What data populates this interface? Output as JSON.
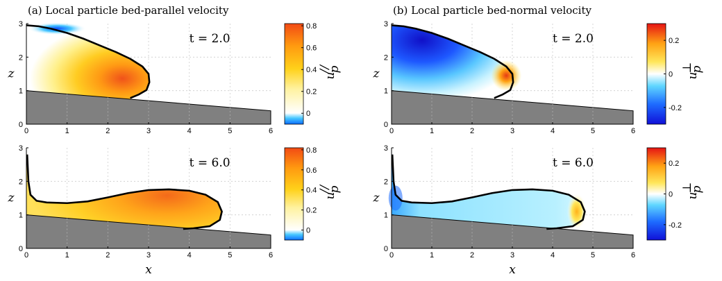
{
  "chart_data": [
    {
      "type": "heatmap",
      "panel": "left-top",
      "title": "(a) Local particle bed-parallel velocity",
      "time_label": "t = 2.0",
      "xlabel": "",
      "ylabel": "z",
      "xlim": [
        0,
        6
      ],
      "ylim": [
        0,
        3
      ],
      "xticks": [
        "0",
        "1",
        "2",
        "3",
        "4",
        "5",
        "6"
      ],
      "yticks": [
        "0",
        "1",
        "2",
        "3"
      ],
      "bed_line": {
        "x": [
          0,
          6
        ],
        "z": [
          1.0,
          0.4
        ]
      },
      "front_outline": {
        "x": [
          0.0,
          0.3,
          0.6,
          1.0,
          1.4,
          1.8,
          2.2,
          2.55,
          2.85,
          3.0,
          3.02,
          2.95,
          2.75,
          2.55
        ],
        "z": [
          2.95,
          2.92,
          2.85,
          2.72,
          2.55,
          2.35,
          2.15,
          1.95,
          1.72,
          1.5,
          1.25,
          1.02,
          0.88,
          0.78
        ]
      },
      "colorbar": {
        "label": "u_p^//",
        "ticks": [
          -0.0,
          0.2,
          0.4,
          0.6,
          0.8
        ],
        "ticklabels": [
          "0",
          "0.2",
          "0.4",
          "0.6",
          "0.8"
        ],
        "range": [
          -0.1,
          0.82
        ],
        "colormap": "white-yellow-red, blue below 0"
      },
      "grid": true
    },
    {
      "type": "heatmap",
      "panel": "right-top",
      "title": "(b) Local particle bed-normal velocity",
      "time_label": "t = 2.0",
      "xlabel": "",
      "ylabel": "z",
      "xlim": [
        0,
        6
      ],
      "ylim": [
        0,
        3
      ],
      "xticks": [
        "0",
        "1",
        "2",
        "3",
        "4",
        "5",
        "6"
      ],
      "yticks": [
        "0",
        "1",
        "2",
        "3"
      ],
      "bed_line": {
        "x": [
          0,
          6
        ],
        "z": [
          1.0,
          0.4
        ]
      },
      "front_outline": {
        "x": [
          0.0,
          0.3,
          0.6,
          1.0,
          1.4,
          1.8,
          2.2,
          2.55,
          2.85,
          3.0,
          3.02,
          2.95,
          2.75,
          2.55
        ],
        "z": [
          2.95,
          2.92,
          2.85,
          2.72,
          2.55,
          2.35,
          2.15,
          1.95,
          1.72,
          1.5,
          1.25,
          1.02,
          0.88,
          0.78
        ]
      },
      "colorbar": {
        "label": "u_p^⊥",
        "ticks": [
          -0.2,
          0,
          0.2
        ],
        "ticklabels": [
          "-0.2",
          "0",
          "0.2"
        ],
        "range": [
          -0.3,
          0.3
        ],
        "colormap": "blue-cyan-white-yellow-red"
      },
      "grid": true
    },
    {
      "type": "heatmap",
      "panel": "left-bottom",
      "title": "",
      "time_label": "t = 6.0",
      "xlabel": "x",
      "ylabel": "z",
      "xlim": [
        0,
        6
      ],
      "ylim": [
        0,
        3
      ],
      "xticks": [
        "0",
        "1",
        "2",
        "3",
        "4",
        "5",
        "6"
      ],
      "yticks": [
        "0",
        "1",
        "2",
        "3"
      ],
      "bed_line": {
        "x": [
          0,
          6
        ],
        "z": [
          1.0,
          0.4
        ]
      },
      "front_outline": {
        "x": [
          0.02,
          0.05,
          0.1,
          0.25,
          0.5,
          1.0,
          1.5,
          2.0,
          2.5,
          3.0,
          3.5,
          4.0,
          4.4,
          4.7,
          4.8,
          4.75,
          4.5,
          4.1,
          3.85
        ],
        "z": [
          2.8,
          2.0,
          1.6,
          1.42,
          1.37,
          1.35,
          1.4,
          1.52,
          1.65,
          1.74,
          1.76,
          1.72,
          1.6,
          1.38,
          1.1,
          0.85,
          0.66,
          0.6,
          0.58
        ]
      },
      "colorbar": {
        "label": "u_p^//",
        "ticks": [
          0,
          0.2,
          0.4,
          0.6,
          0.8
        ],
        "ticklabels": [
          "0",
          "0.2",
          "0.4",
          "0.6",
          "0.8"
        ],
        "range": [
          -0.1,
          0.82
        ],
        "colormap": "white-yellow-red, blue below 0"
      },
      "grid": true
    },
    {
      "type": "heatmap",
      "panel": "right-bottom",
      "title": "",
      "time_label": "t = 6.0",
      "xlabel": "x",
      "ylabel": "z",
      "xlim": [
        0,
        6
      ],
      "ylim": [
        0,
        3
      ],
      "xticks": [
        "0",
        "1",
        "2",
        "3",
        "4",
        "5",
        "6"
      ],
      "yticks": [
        "0",
        "1",
        "2",
        "3"
      ],
      "bed_line": {
        "x": [
          0,
          6
        ],
        "z": [
          1.0,
          0.4
        ]
      },
      "front_outline": {
        "x": [
          0.02,
          0.05,
          0.1,
          0.25,
          0.5,
          1.0,
          1.5,
          2.0,
          2.5,
          3.0,
          3.5,
          4.0,
          4.4,
          4.7,
          4.8,
          4.75,
          4.5,
          4.1,
          3.85
        ],
        "z": [
          2.8,
          2.0,
          1.6,
          1.42,
          1.37,
          1.35,
          1.4,
          1.52,
          1.65,
          1.74,
          1.76,
          1.72,
          1.6,
          1.38,
          1.1,
          0.85,
          0.66,
          0.6,
          0.58
        ]
      },
      "colorbar": {
        "label": "u_p^⊥",
        "ticks": [
          -0.2,
          0,
          0.2
        ],
        "ticklabels": [
          "-0.2",
          "0",
          "0.2"
        ],
        "range": [
          -0.3,
          0.3
        ],
        "colormap": "blue-cyan-white-yellow-red"
      },
      "grid": true
    }
  ],
  "colors": {
    "bed_fill": "#808080",
    "outline": "#000000",
    "grid": "#cccccc"
  }
}
